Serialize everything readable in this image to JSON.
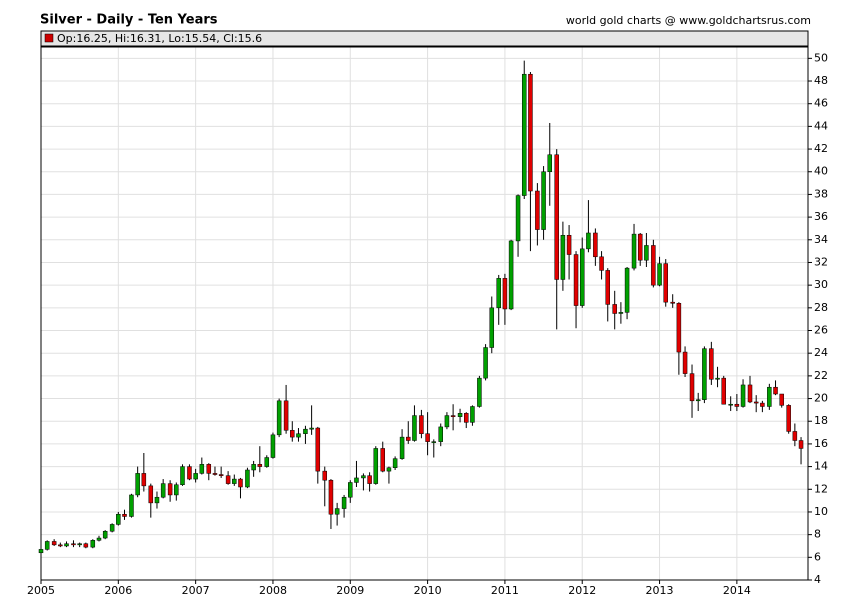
{
  "chart_data": {
    "type": "candlestick",
    "title": "Silver - Daily - Ten Years",
    "source": "world gold charts @ www.goldchartsrus.com",
    "legend": "Op:16.25, Hi:16.31, Lo:15.54, Cl:15.6",
    "up_color": "#00a000",
    "down_color": "#e00000",
    "legend_color": "#cc0000",
    "grid": true,
    "xlim": [
      2005,
      2014.92
    ],
    "xticks": [
      2005,
      2006,
      2007,
      2008,
      2009,
      2010,
      2011,
      2012,
      2013,
      2014
    ],
    "ylim": [
      4,
      51
    ],
    "yticks": [
      4,
      6,
      8,
      10,
      12,
      14,
      16,
      18,
      20,
      22,
      24,
      26,
      28,
      30,
      32,
      34,
      36,
      38,
      40,
      42,
      44,
      46,
      48,
      50
    ],
    "x": [
      2005,
      2005.08,
      2005.17,
      2005.25,
      2005.33,
      2005.42,
      2005.5,
      2005.58,
      2005.67,
      2005.75,
      2005.83,
      2005.92,
      2006,
      2006.08,
      2006.17,
      2006.25,
      2006.33,
      2006.42,
      2006.5,
      2006.58,
      2006.67,
      2006.75,
      2006.83,
      2006.92,
      2007,
      2007.08,
      2007.17,
      2007.25,
      2007.33,
      2007.42,
      2007.5,
      2007.58,
      2007.67,
      2007.75,
      2007.83,
      2007.92,
      2008,
      2008.08,
      2008.17,
      2008.25,
      2008.33,
      2008.42,
      2008.5,
      2008.58,
      2008.67,
      2008.75,
      2008.83,
      2008.92,
      2009,
      2009.08,
      2009.17,
      2009.25,
      2009.33,
      2009.42,
      2009.5,
      2009.58,
      2009.67,
      2009.75,
      2009.83,
      2009.92,
      2010,
      2010.08,
      2010.17,
      2010.25,
      2010.33,
      2010.42,
      2010.5,
      2010.58,
      2010.67,
      2010.75,
      2010.83,
      2010.92,
      2011,
      2011.08,
      2011.17,
      2011.25,
      2011.33,
      2011.42,
      2011.5,
      2011.58,
      2011.67,
      2011.75,
      2011.83,
      2011.92,
      2012,
      2012.08,
      2012.17,
      2012.25,
      2012.33,
      2012.42,
      2012.5,
      2012.58,
      2012.67,
      2012.75,
      2012.83,
      2012.92,
      2013,
      2013.08,
      2013.17,
      2013.25,
      2013.33,
      2013.42,
      2013.5,
      2013.58,
      2013.67,
      2013.75,
      2013.83,
      2013.92,
      2014,
      2014.08,
      2014.17,
      2014.25,
      2014.33,
      2014.42,
      2014.5,
      2014.58,
      2014.67,
      2014.75,
      2014.83
    ],
    "open": [
      6.4,
      6.7,
      7.4,
      7.1,
      7.0,
      7.2,
      7.1,
      7.2,
      6.9,
      7.5,
      7.7,
      8.3,
      8.9,
      9.8,
      9.6,
      11.5,
      13.4,
      12.3,
      10.8,
      11.3,
      12.5,
      11.5,
      12.4,
      14.0,
      12.9,
      13.4,
      14.2,
      13.4,
      13.3,
      13.2,
      12.5,
      12.9,
      12.2,
      13.7,
      14.2,
      14.0,
      14.8,
      16.8,
      19.8,
      17.2,
      16.6,
      16.9,
      17.3,
      17.4,
      13.6,
      12.8,
      9.8,
      10.3,
      11.3,
      12.6,
      13.0,
      13.2,
      12.5,
      15.6,
      13.6,
      13.9,
      14.7,
      16.6,
      16.3,
      18.5,
      16.9,
      16.2,
      16.2,
      17.5,
      18.5,
      18.4,
      18.7,
      17.9,
      19.3,
      21.8,
      24.5,
      28.0,
      30.6,
      27.9,
      33.9,
      37.9,
      48.6,
      38.3,
      34.9,
      40.0,
      41.5,
      30.5,
      34.4,
      32.7,
      28.2,
      33.2,
      34.6,
      32.5,
      31.3,
      28.3,
      27.5,
      27.6,
      31.5,
      34.5,
      32.2,
      33.5,
      30.0,
      31.9,
      28.5,
      28.4,
      24.1,
      22.2,
      19.8,
      19.9,
      24.4,
      21.7,
      21.8,
      19.5,
      19.5,
      19.3,
      21.2,
      19.7,
      19.6,
      19.3,
      21.0,
      20.4,
      19.4,
      17.1,
      16.3
    ],
    "high": [
      6.9,
      7.5,
      7.6,
      7.3,
      7.4,
      7.5,
      7.3,
      7.3,
      7.6,
      7.9,
      8.4,
      9.0,
      10.0,
      10.2,
      11.6,
      14.0,
      15.2,
      12.5,
      11.8,
      12.9,
      12.8,
      12.6,
      14.2,
      14.2,
      13.8,
      14.8,
      14.3,
      14.0,
      14.0,
      13.6,
      13.3,
      13.0,
      13.9,
      14.5,
      15.8,
      15.0,
      17.0,
      20.0,
      21.2,
      18.0,
      17.4,
      17.6,
      19.4,
      17.5,
      14.0,
      12.9,
      10.8,
      11.5,
      12.8,
      14.5,
      13.4,
      13.5,
      15.8,
      16.2,
      14.0,
      14.9,
      17.3,
      18.0,
      19.4,
      19.0,
      18.8,
      16.4,
      17.8,
      18.8,
      19.5,
      19.1,
      18.8,
      19.4,
      22.0,
      24.8,
      29.0,
      30.9,
      31.0,
      34.0,
      38.0,
      49.8,
      48.8,
      39.0,
      40.5,
      44.3,
      42.0,
      35.6,
      35.3,
      33.0,
      34.2,
      37.5,
      35.0,
      33.0,
      31.5,
      29.5,
      28.5,
      31.6,
      35.4,
      34.6,
      34.6,
      34.0,
      32.5,
      32.3,
      29.2,
      28.5,
      24.6,
      23.0,
      20.5,
      24.6,
      25.0,
      22.8,
      22.0,
      20.2,
      20.4,
      21.7,
      22.0,
      20.3,
      19.8,
      21.3,
      21.6,
      20.4,
      19.5,
      17.8,
      16.6
    ],
    "low": [
      6.3,
      6.6,
      7.0,
      6.9,
      6.9,
      6.9,
      6.9,
      6.8,
      6.8,
      7.4,
      7.6,
      8.2,
      8.8,
      9.3,
      9.5,
      11.3,
      11.8,
      9.5,
      10.3,
      11.2,
      10.9,
      11.0,
      12.3,
      12.8,
      12.6,
      13.3,
      12.8,
      13.2,
      13.0,
      12.4,
      12.3,
      11.2,
      12.1,
      13.1,
      13.5,
      13.9,
      14.7,
      16.6,
      16.9,
      16.2,
      16.2,
      16.0,
      16.8,
      12.5,
      10.5,
      8.5,
      8.8,
      9.5,
      10.8,
      12.2,
      11.9,
      11.8,
      12.4,
      13.5,
      12.5,
      13.7,
      14.6,
      16.0,
      16.2,
      16.5,
      15.0,
      14.8,
      15.8,
      17.3,
      17.2,
      17.9,
      17.4,
      17.6,
      19.2,
      21.6,
      24.0,
      26.5,
      26.5,
      27.8,
      32.5,
      37.6,
      33.0,
      33.5,
      34.0,
      37.0,
      26.1,
      29.5,
      30.5,
      26.2,
      28.0,
      32.9,
      31.7,
      30.5,
      26.8,
      26.1,
      26.6,
      27.0,
      31.3,
      31.7,
      31.6,
      29.8,
      29.9,
      28.1,
      28.0,
      22.1,
      21.9,
      18.3,
      18.9,
      19.6,
      21.2,
      21.0,
      19.5,
      18.9,
      18.9,
      19.2,
      19.6,
      18.8,
      18.8,
      19.0,
      20.3,
      19.2,
      16.9,
      15.8,
      14.2
    ],
    "close": [
      6.7,
      7.4,
      7.1,
      7.0,
      7.2,
      7.1,
      7.2,
      6.9,
      7.5,
      7.7,
      8.3,
      8.9,
      9.8,
      9.6,
      11.5,
      13.4,
      12.3,
      10.8,
      11.3,
      12.5,
      11.5,
      12.4,
      14.0,
      12.9,
      13.4,
      14.2,
      13.4,
      13.3,
      13.2,
      12.5,
      12.9,
      12.2,
      13.7,
      14.2,
      14.0,
      14.8,
      16.8,
      19.8,
      17.2,
      16.6,
      16.9,
      17.3,
      17.4,
      13.6,
      12.8,
      9.8,
      10.3,
      11.3,
      12.6,
      13.0,
      13.2,
      12.5,
      15.6,
      13.6,
      13.9,
      14.7,
      16.6,
      16.3,
      18.5,
      16.9,
      16.2,
      16.2,
      17.5,
      18.5,
      18.4,
      18.7,
      17.9,
      19.3,
      21.8,
      24.5,
      28.0,
      30.6,
      27.9,
      33.9,
      37.9,
      48.6,
      38.3,
      34.9,
      40.0,
      41.5,
      30.5,
      34.4,
      32.7,
      28.2,
      33.2,
      34.6,
      32.5,
      31.3,
      28.3,
      27.5,
      27.6,
      31.5,
      34.5,
      32.2,
      33.5,
      30.0,
      31.9,
      28.5,
      28.4,
      24.1,
      22.2,
      19.8,
      19.9,
      24.4,
      21.7,
      21.8,
      19.5,
      19.5,
      19.3,
      21.2,
      19.7,
      19.6,
      19.3,
      21.0,
      20.4,
      19.4,
      17.1,
      16.3,
      15.6
    ]
  }
}
